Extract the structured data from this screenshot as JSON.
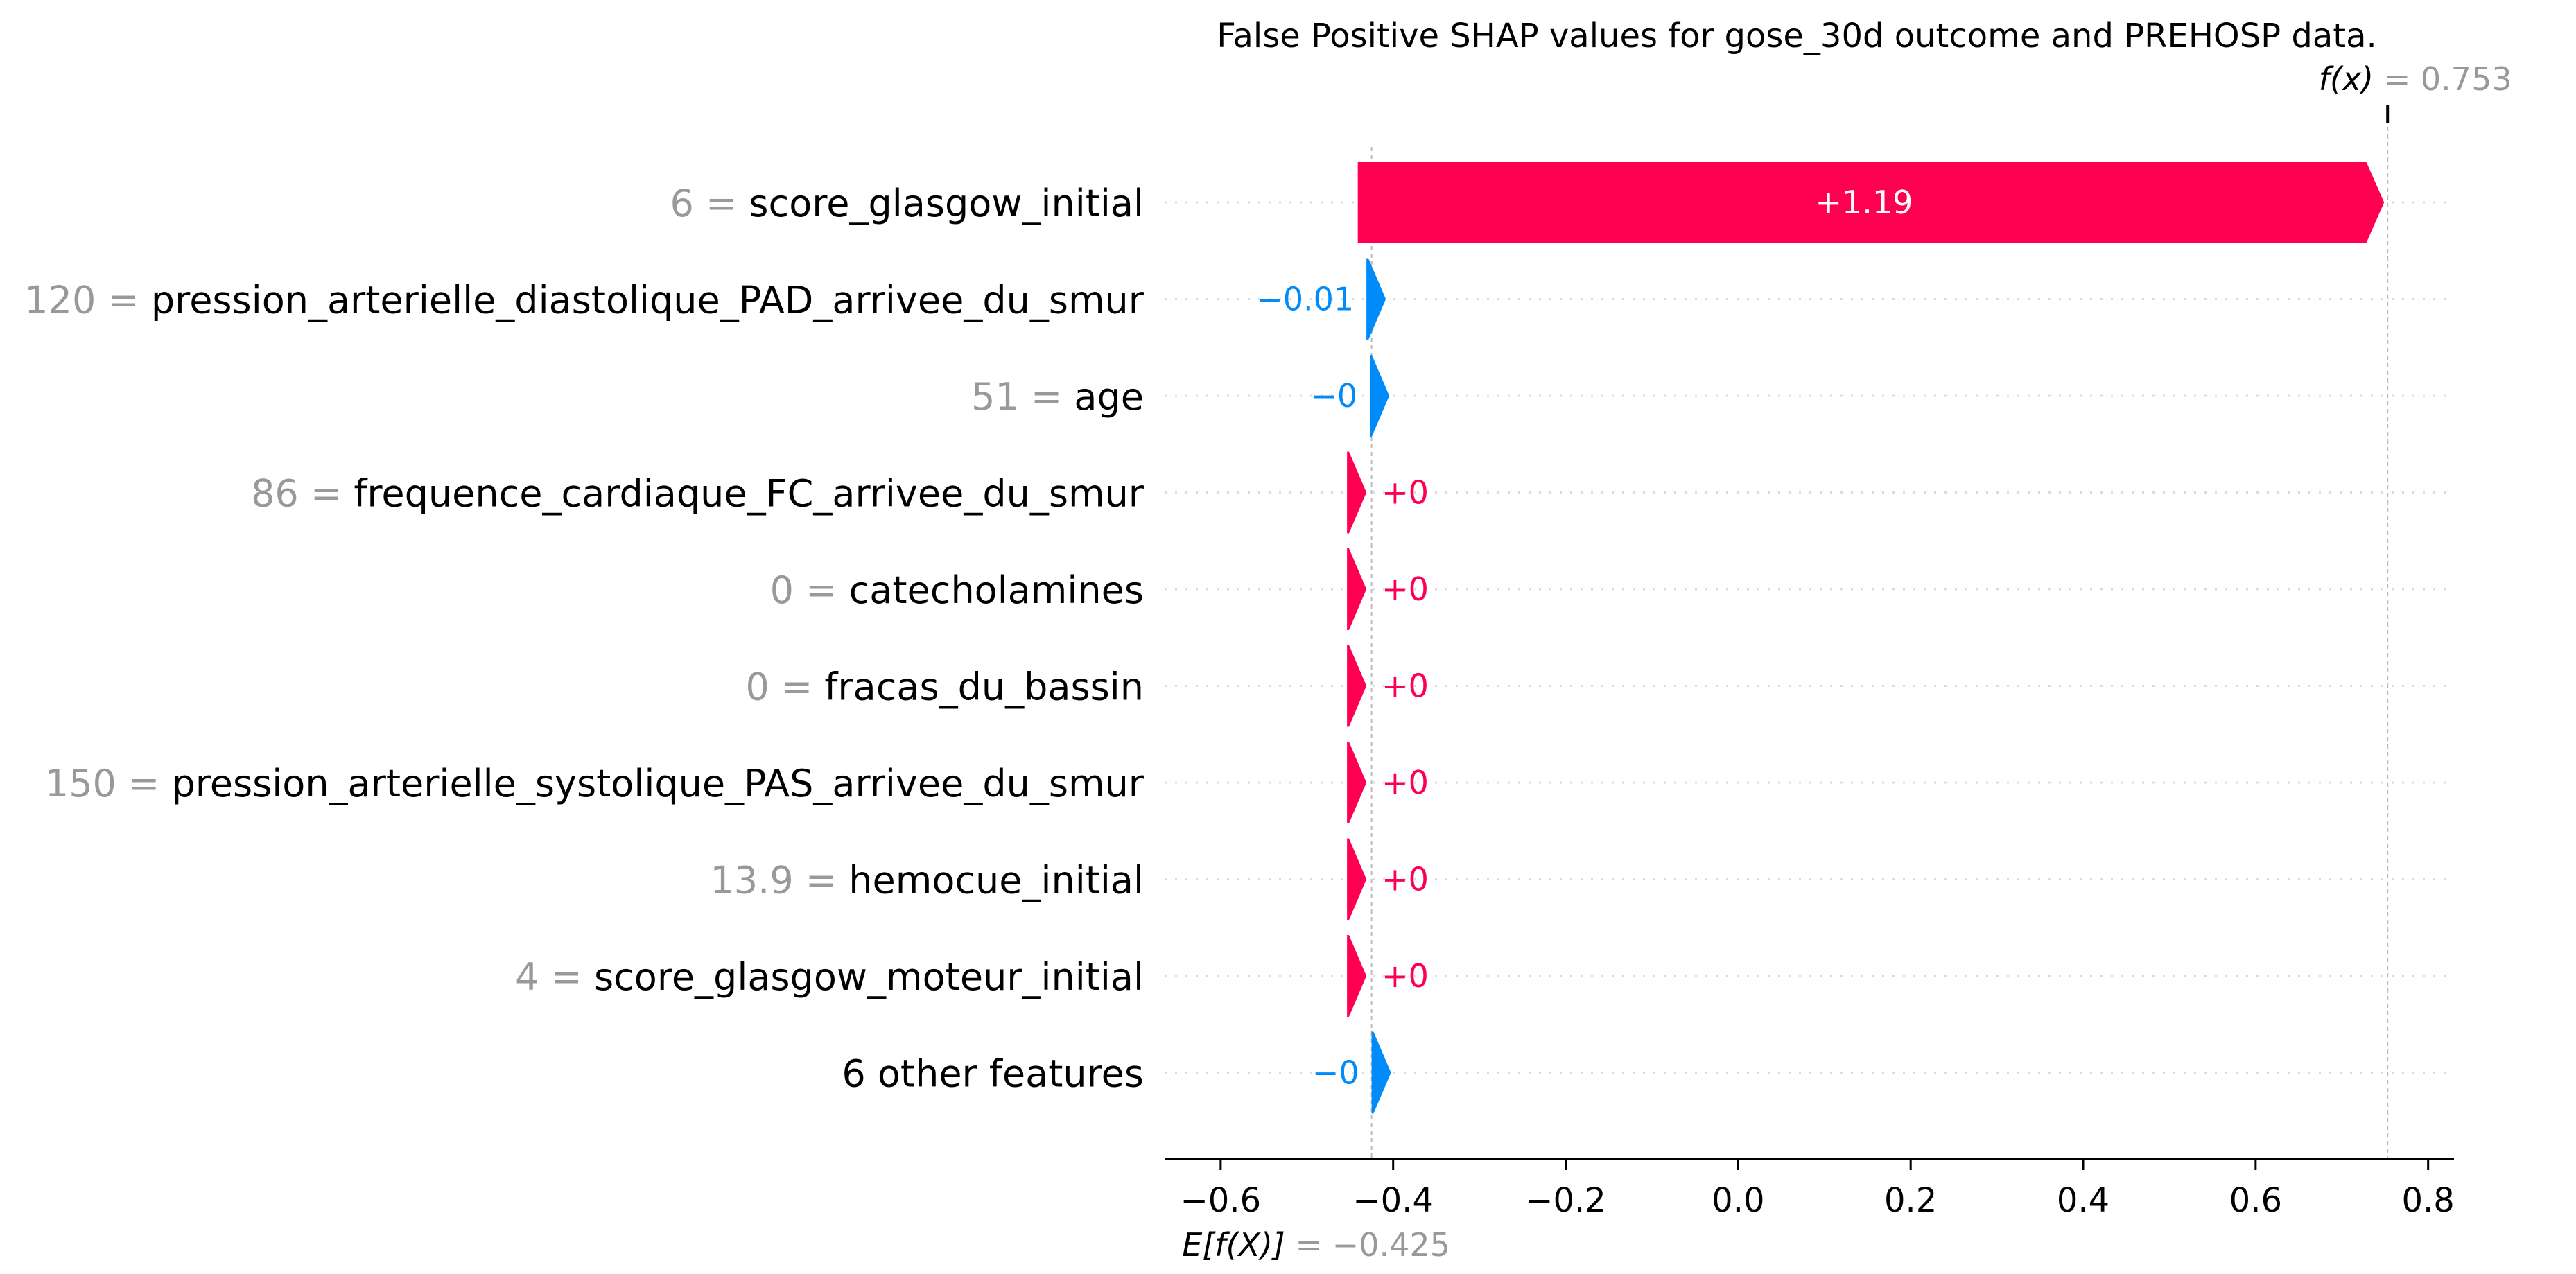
{
  "colors": {
    "positive": "#ff0051",
    "negative": "#008bfb",
    "value_text": "#999999",
    "text": "#000000",
    "gridline": "#cccccc"
  },
  "chart_data": {
    "type": "bar",
    "subtype": "shap-waterfall",
    "title": "False Positive SHAP values for gose_30d outcome and PREHOSP data.",
    "base_value": -0.425,
    "base_label_prefix": "E[f(X)]",
    "base_label_value": "= −0.425",
    "output_value": 0.753,
    "output_label_prefix": "f(x)",
    "output_label_value": "= 0.753",
    "xlim": [
      -0.665,
      0.83
    ],
    "xticks": [
      -0.6,
      -0.4,
      -0.2,
      0.0,
      0.2,
      0.4,
      0.6,
      0.8
    ],
    "xtick_labels": [
      "−0.6",
      "−0.4",
      "−0.2",
      "0.0",
      "0.2",
      "0.4",
      "0.6",
      "0.8"
    ],
    "features": [
      {
        "value": "6",
        "name": "score_glasgow_initial",
        "shap": 1.19,
        "label": "+1.19"
      },
      {
        "value": "120",
        "name": "pression_arterielle_diastolique_PAD_arrivee_du_smur",
        "shap": -0.01,
        "label": "−0.01"
      },
      {
        "value": "51",
        "name": "age",
        "shap": -0.004,
        "label": "−0"
      },
      {
        "value": "86",
        "name": "frequence_cardiaque_FC_arrivee_du_smur",
        "shap": 0.004,
        "label": "+0"
      },
      {
        "value": "0",
        "name": "catecholamines",
        "shap": 0.0,
        "label": "+0"
      },
      {
        "value": "0",
        "name": "fracas_du_bassin",
        "shap": 0.0,
        "label": "+0"
      },
      {
        "value": "150",
        "name": "pression_arterielle_systolique_PAS_arrivee_du_smur",
        "shap": 0.0,
        "label": "+0"
      },
      {
        "value": "13.9",
        "name": "hemocue_initial",
        "shap": 0.0,
        "label": "+0"
      },
      {
        "value": "4",
        "name": "score_glasgow_moteur_initial",
        "shap": 0.0,
        "label": "+0"
      },
      {
        "value": "",
        "name": "6 other features",
        "shap": -0.006,
        "label": "−0"
      }
    ]
  }
}
